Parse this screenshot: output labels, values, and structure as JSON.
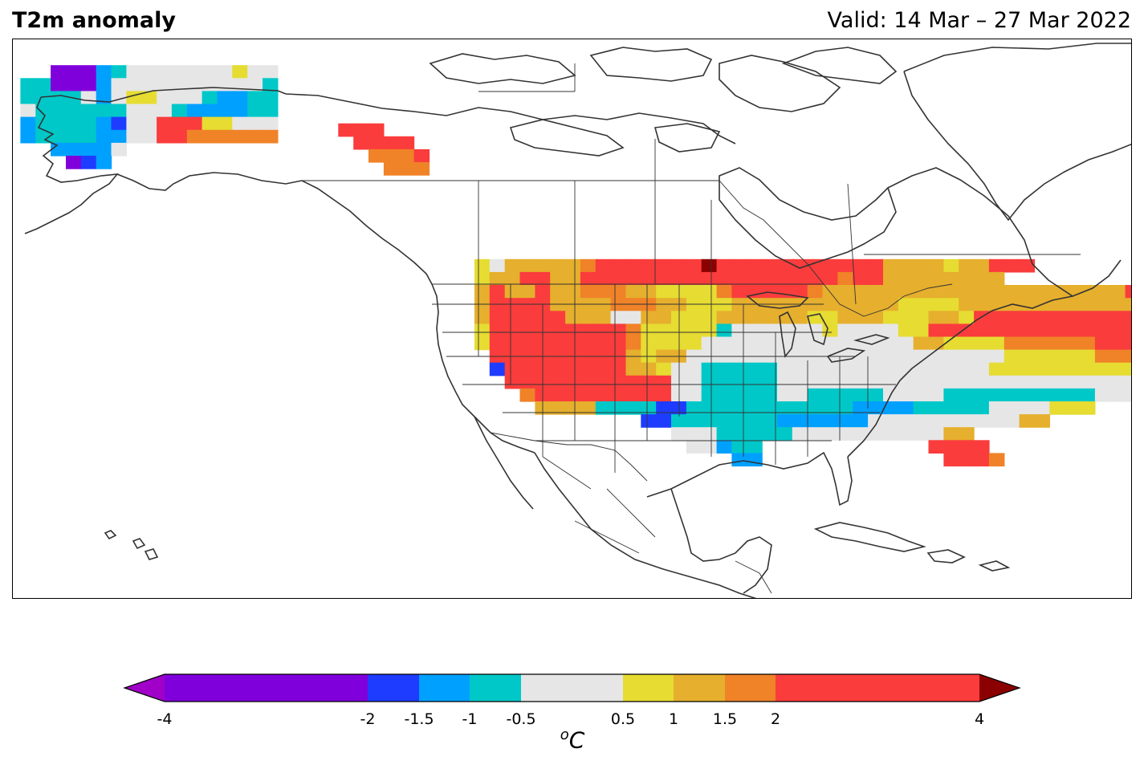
{
  "header": {
    "title": "T2m anomaly",
    "valid": "Valid: 14 Mar – 27 Mar 2022"
  },
  "colorbar": {
    "ticks": [
      "-4",
      "-2",
      "-1.5",
      "-1",
      "-0.5",
      "0.5",
      "1",
      "1.5",
      "2",
      "4"
    ],
    "unit_base": "C",
    "unit_sup": "o",
    "under_color": "#a000c8",
    "over_color": "#8b0000",
    "bins": [
      {
        "from": -4,
        "to": -2,
        "color": "#8000dc"
      },
      {
        "from": -2,
        "to": -1.5,
        "color": "#1e3cff"
      },
      {
        "from": -1.5,
        "to": -1,
        "color": "#00a0ff"
      },
      {
        "from": -1,
        "to": -0.5,
        "color": "#00c8c8"
      },
      {
        "from": -0.5,
        "to": 0.5,
        "color": "#e6e6e6"
      },
      {
        "from": 0.5,
        "to": 1,
        "color": "#e6dc32"
      },
      {
        "from": 1,
        "to": 1.5,
        "color": "#e6af2d"
      },
      {
        "from": 1.5,
        "to": 2,
        "color": "#f08228"
      },
      {
        "from": 2,
        "to": 4,
        "color": "#fa3c3c"
      }
    ]
  },
  "map": {
    "region": "North America",
    "projection": "PlateCarree",
    "lon_range": [
      -171,
      -60
    ],
    "lat_range": [
      10,
      75
    ],
    "grid_deg": 1.5,
    "coastline_color": "#333333",
    "legend_key": {
      "P": "#8000dc",
      "B": "#1e3cff",
      "L": "#00a0ff",
      "C": "#00c8c8",
      "G": "#e6e6e6",
      "Y": "#e6dc32",
      "O": "#e6af2d",
      "N": "#f08228",
      "R": "#fa3c3c",
      "D": "#8b0000"
    },
    "anomaly_rows_lat_desc": [
      {
        "lat": 71.25,
        "lon0": -169.5,
        "cells": "..PPPLCGGGGGGGYGG"
      },
      {
        "lat": 69.75,
        "lon0": -169.5,
        "cells": "CCPPPLGGGGGGGGGGC"
      },
      {
        "lat": 68.25,
        "lon0": -169.5,
        "cells": "CCCCGLGYYGGGCLLCC"
      },
      {
        "lat": 66.75,
        "lon0": -169.5,
        "cells": "GCCCCCCGGGCLLLLCC"
      },
      {
        "lat": 65.25,
        "lon0": -169.5,
        "cells": "LCCCCLBGGRRRYYGGG"
      },
      {
        "lat": 63.75,
        "lon0": -169.5,
        "cells": "LCCCCLLGGRRNNNNNN"
      },
      {
        "lat": 62.25,
        "lon0": -169.5,
        "cells": "..LLLLG"
      },
      {
        "lat": 60.75,
        "lon0": -169.5,
        "cells": "...PBL"
      },
      {
        "lat": 64.5,
        "lon0": -138.0,
        "cells": "RRR"
      },
      {
        "lat": 63.0,
        "lon0": -136.5,
        "cells": "RRRR"
      },
      {
        "lat": 61.5,
        "lon0": -135.0,
        "cells": "NNNR"
      },
      {
        "lat": 60.0,
        "lon0": -133.5,
        "cells": "NNN"
      },
      {
        "lat": 48.75,
        "lon0": -124.5,
        "cells": "YGOOOOONRRRRRRRDRRRRRRRRRRROOOOYOORRR"
      },
      {
        "lat": 47.25,
        "lon0": -124.5,
        "cells": "YOORROORRRRRRRRRRRRRRRRRNRROOOOOOOO"
      },
      {
        "lat": 45.75,
        "lon0": -124.5,
        "cells": "OROOROONNNOOYYYYNRRRRRNOOOOOOOOOOOOOOOOOOOORRRRRRRRDDDDDDRRRRRRR"
      },
      {
        "lat": 44.25,
        "lon0": -124.5,
        "cells": "ORRRROOOONNNOOYYYOOOOOOOOOOOYYYYOOOOOOOOOOOOOORRRRRRRDDDDDDDDRRRRRRRRR"
      },
      {
        "lat": 42.75,
        "lon0": -124.5,
        "cells": "ORRRRROOOGGOOYYYOOOOOOYYOOOYYYOOYRRRRRRRRRRRRRRRRRDDDDDDDDRRRRRR"
      },
      {
        "lat": 41.25,
        "lon0": -124.5,
        "cells": "YRRRRRRRRRNYYYYYCGGGGGGYGGGGYYRRRRRRRRRRRRRRRRRRRDDDDDDD"
      },
      {
        "lat": 39.75,
        "lon0": -124.5,
        "cells": "YRRRRRRRRRNYYYYGGGGGGGGGGGGGGOOYYYYNNNNNNRRRRRRRRRRRRD"
      },
      {
        "lat": 38.25,
        "lon0": -124.5,
        "cells": ".RRRRRRRRROYOOGGGGGGGGGGGGGGGGGGGGGYYYYYYNNNNRRRRRRRRRR"
      },
      {
        "lat": 36.75,
        "lon0": -124.5,
        "cells": ".BRRRRRRRROOYGGCCCCCGGGGGGGGGGGGGGYYYYYYYYYYNNNNRRRRRR"
      },
      {
        "lat": 35.25,
        "lon0": -124.5,
        "cells": "..RRRRRRRRRRRGGCCCCCGGGGGGGGGGGGGGGGGGGGGGGGGYYOOOOORRRRR"
      },
      {
        "lat": 33.75,
        "lon0": -124.5,
        "cells": "...NRRRRRRRRRGGCCCCCGGCCCCCGGGGCCCCCCCCCCGGGGYYOOOOORRRRR"
      },
      {
        "lat": 32.25,
        "lon0": -118.5,
        "cells": "OOOOCCCCBBCCCCCCCCCCCLLLLCCCCCGGGGYYY"
      },
      {
        "lat": 30.75,
        "lon0": -108.0,
        "cells": "BBCCCCCCCLLLLLLGGGGGGGGGGOO"
      },
      {
        "lat": 29.25,
        "lon0": -105.0,
        "cells": "GGGCCCCCGGGGGGGGGGOO"
      },
      {
        "lat": 27.75,
        "lon0": -103.5,
        "cells": "GGLCC...........RRRR"
      },
      {
        "lat": 26.25,
        "lon0": -99.0,
        "cells": "LL............RRRN"
      }
    ]
  },
  "regions": {
    "us_states": "drawn",
    "canada_provinces": "drawn",
    "mexico_states": "drawn"
  }
}
